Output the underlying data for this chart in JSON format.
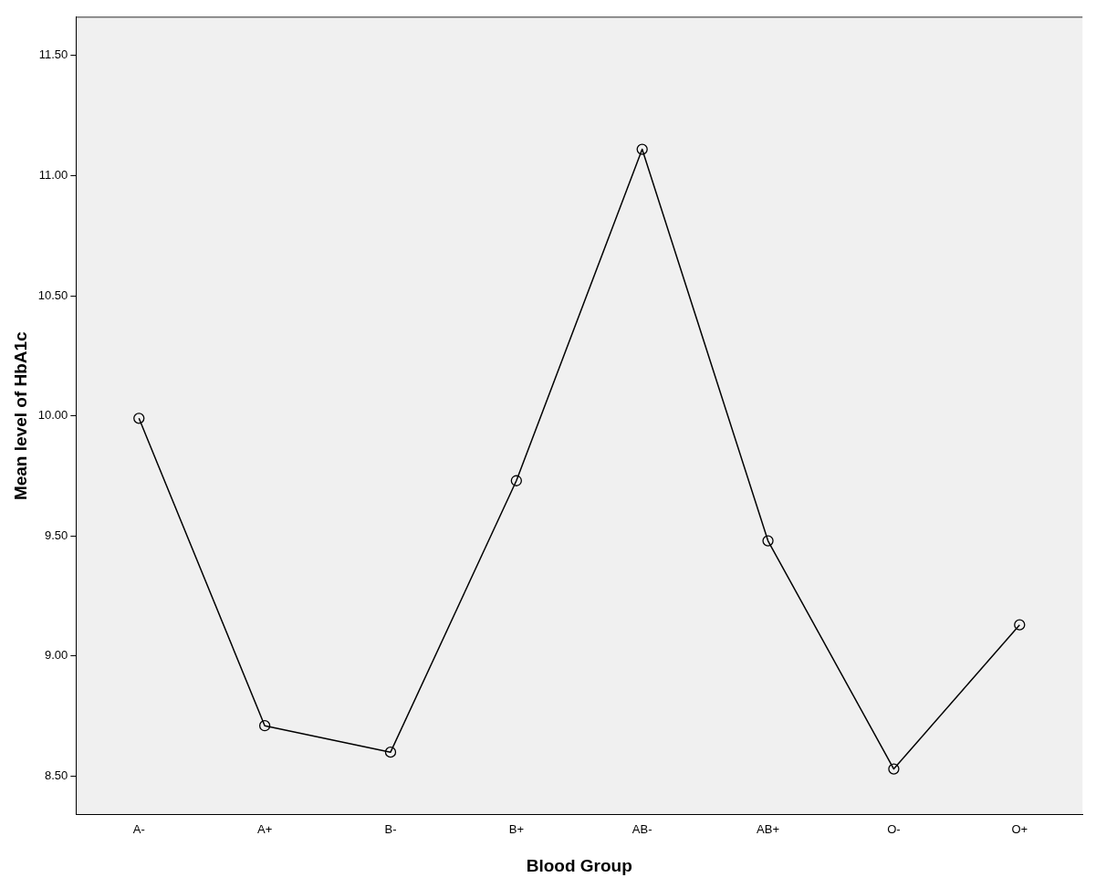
{
  "chart_data": {
    "type": "line",
    "xlabel": "Blood Group",
    "ylabel": "Mean level of HbA1c",
    "categories": [
      "A-",
      "A+",
      "B-",
      "B+",
      "AB-",
      "AB+",
      "O-",
      "O+"
    ],
    "series": [
      {
        "color": "#000000",
        "values": [
          9.99,
          8.71,
          8.6,
          9.73,
          11.11,
          9.48,
          8.53,
          9.13
        ]
      }
    ],
    "ylim": [
      8.34,
      11.66
    ],
    "yticks": [
      {
        "value": 8.5,
        "label": "8.50"
      },
      {
        "value": 9,
        "label": "9.00"
      },
      {
        "value": 9.5,
        "label": "9.50"
      },
      {
        "value": 10,
        "label": "10.00"
      },
      {
        "value": 10.5,
        "label": "10.50"
      },
      {
        "value": 11,
        "label": "11.00"
      },
      {
        "value": 11.5,
        "label": "11.50"
      }
    ],
    "grid": false,
    "legend": false,
    "marker": "circle",
    "line_style": "solid"
  }
}
